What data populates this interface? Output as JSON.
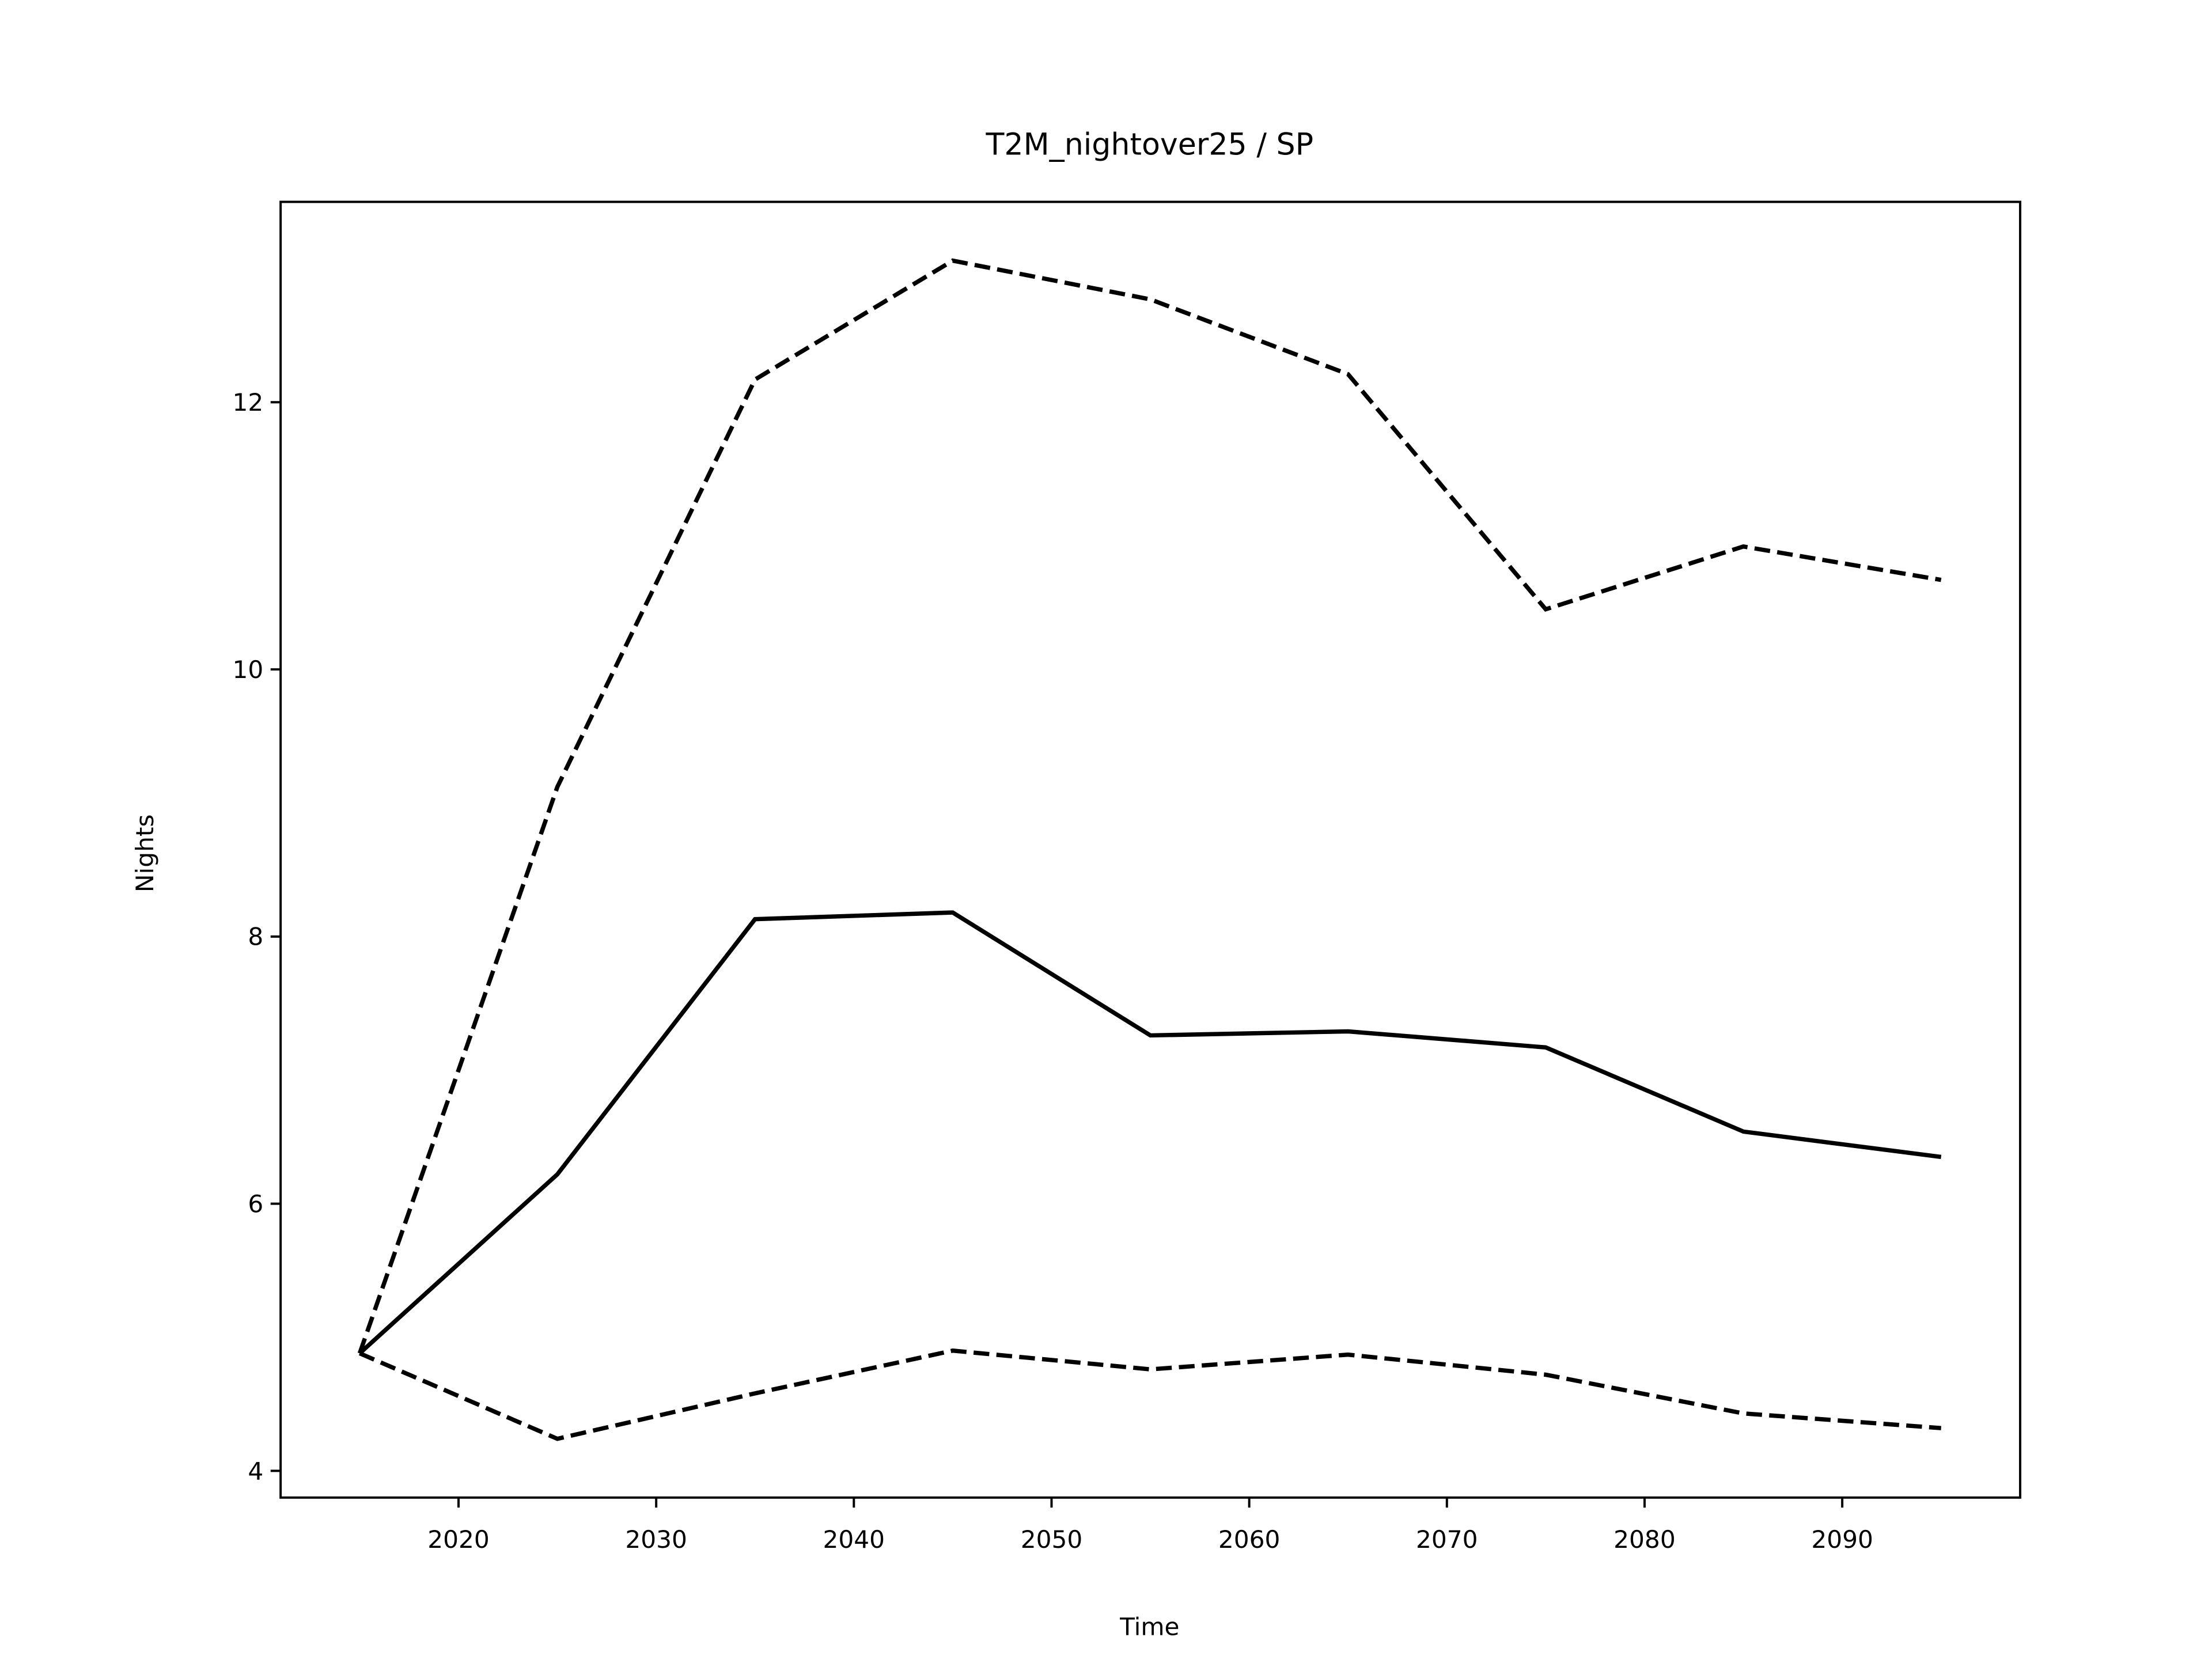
{
  "chart_data": {
    "type": "line",
    "title": "T2M_nightover25 / SP",
    "xlabel": "Time",
    "ylabel": "Nights",
    "x": [
      2015,
      2025,
      2035,
      2045,
      2055,
      2065,
      2075,
      2085,
      2095
    ],
    "series": [
      {
        "color": "#000000",
        "linestyle": "solid",
        "values": [
          4.88,
          6.22,
          8.13,
          8.18,
          7.26,
          7.29,
          7.17,
          6.54,
          6.35
        ]
      },
      {
        "color": "#000000",
        "linestyle": "dashed",
        "values": [
          4.88,
          9.12,
          12.17,
          13.06,
          12.77,
          12.21,
          10.45,
          10.92,
          10.67
        ]
      },
      {
        "color": "#000000",
        "linestyle": "dashed",
        "values": [
          4.88,
          4.24,
          4.58,
          4.9,
          4.76,
          4.87,
          4.72,
          4.43,
          4.32
        ]
      }
    ],
    "xlim": [
      2011,
      2099
    ],
    "ylim": [
      3.8,
      13.5
    ],
    "xticks": [
      2020,
      2030,
      2040,
      2050,
      2060,
      2070,
      2080,
      2090
    ],
    "yticks": [
      4,
      6,
      8,
      10,
      12
    ],
    "grid": false
  }
}
